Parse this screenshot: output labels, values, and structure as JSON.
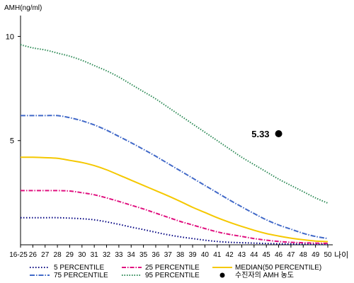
{
  "chart_data": {
    "type": "line",
    "ylabel": "AMH(ng/ml)",
    "xlabel": "나이",
    "ylim": [
      0,
      11
    ],
    "yticks": [
      5,
      10
    ],
    "ytick_labels": [
      "5",
      "10"
    ],
    "categories": [
      "16-25",
      "26",
      "27",
      "28",
      "29",
      "30",
      "31",
      "32",
      "33",
      "34",
      "35",
      "36",
      "37",
      "38",
      "39",
      "40",
      "41",
      "42",
      "43",
      "44",
      "45",
      "46",
      "47",
      "48",
      "49",
      "50"
    ],
    "series": [
      {
        "name": "5 PERCENTILE",
        "color": "#000080",
        "dash": "1.5,2.5",
        "values": [
          1.3,
          1.3,
          1.3,
          1.3,
          1.28,
          1.25,
          1.2,
          1.1,
          0.98,
          0.85,
          0.73,
          0.6,
          0.48,
          0.38,
          0.3,
          0.22,
          0.16,
          0.12,
          0.1,
          0.08,
          0.06,
          0.05,
          0.04,
          0.04,
          0.03,
          0.03
        ]
      },
      {
        "name": "25 PERCENTILE",
        "color": "#e0107f",
        "dash": "6,2,1.5,2",
        "values": [
          2.6,
          2.6,
          2.6,
          2.6,
          2.58,
          2.5,
          2.4,
          2.25,
          2.08,
          1.9,
          1.72,
          1.52,
          1.32,
          1.12,
          0.95,
          0.78,
          0.62,
          0.5,
          0.4,
          0.3,
          0.22,
          0.16,
          0.12,
          0.1,
          0.08,
          0.07
        ]
      },
      {
        "name": "MEDIAN(50 PERCENTILE)",
        "color": "#f5c800",
        "dash": "",
        "values": [
          4.2,
          4.2,
          4.18,
          4.15,
          4.05,
          3.95,
          3.8,
          3.6,
          3.35,
          3.1,
          2.85,
          2.6,
          2.35,
          2.08,
          1.8,
          1.55,
          1.3,
          1.08,
          0.88,
          0.7,
          0.54,
          0.42,
          0.32,
          0.24,
          0.18,
          0.15
        ]
      },
      {
        "name": "75 PERCENTILE",
        "color": "#4169c8",
        "dash": "7,2,1.5,2",
        "values": [
          6.2,
          6.2,
          6.2,
          6.2,
          6.1,
          5.95,
          5.75,
          5.5,
          5.2,
          4.9,
          4.58,
          4.25,
          3.9,
          3.55,
          3.2,
          2.85,
          2.5,
          2.15,
          1.82,
          1.5,
          1.2,
          0.95,
          0.75,
          0.55,
          0.4,
          0.3
        ]
      },
      {
        "name": "95 PERCENTILE",
        "color": "#2e8b57",
        "dash": "1.5,2",
        "values": [
          9.6,
          9.45,
          9.35,
          9.2,
          9.05,
          8.85,
          8.6,
          8.35,
          8.05,
          7.7,
          7.35,
          7.0,
          6.6,
          6.2,
          5.8,
          5.4,
          5.0,
          4.6,
          4.2,
          3.85,
          3.5,
          3.15,
          2.85,
          2.55,
          2.25,
          2.0
        ]
      }
    ],
    "highlight": {
      "label": "5.33",
      "legend": "수진자의 AMH 농도",
      "x": "46",
      "y": 5.33,
      "color": "#000000"
    }
  }
}
